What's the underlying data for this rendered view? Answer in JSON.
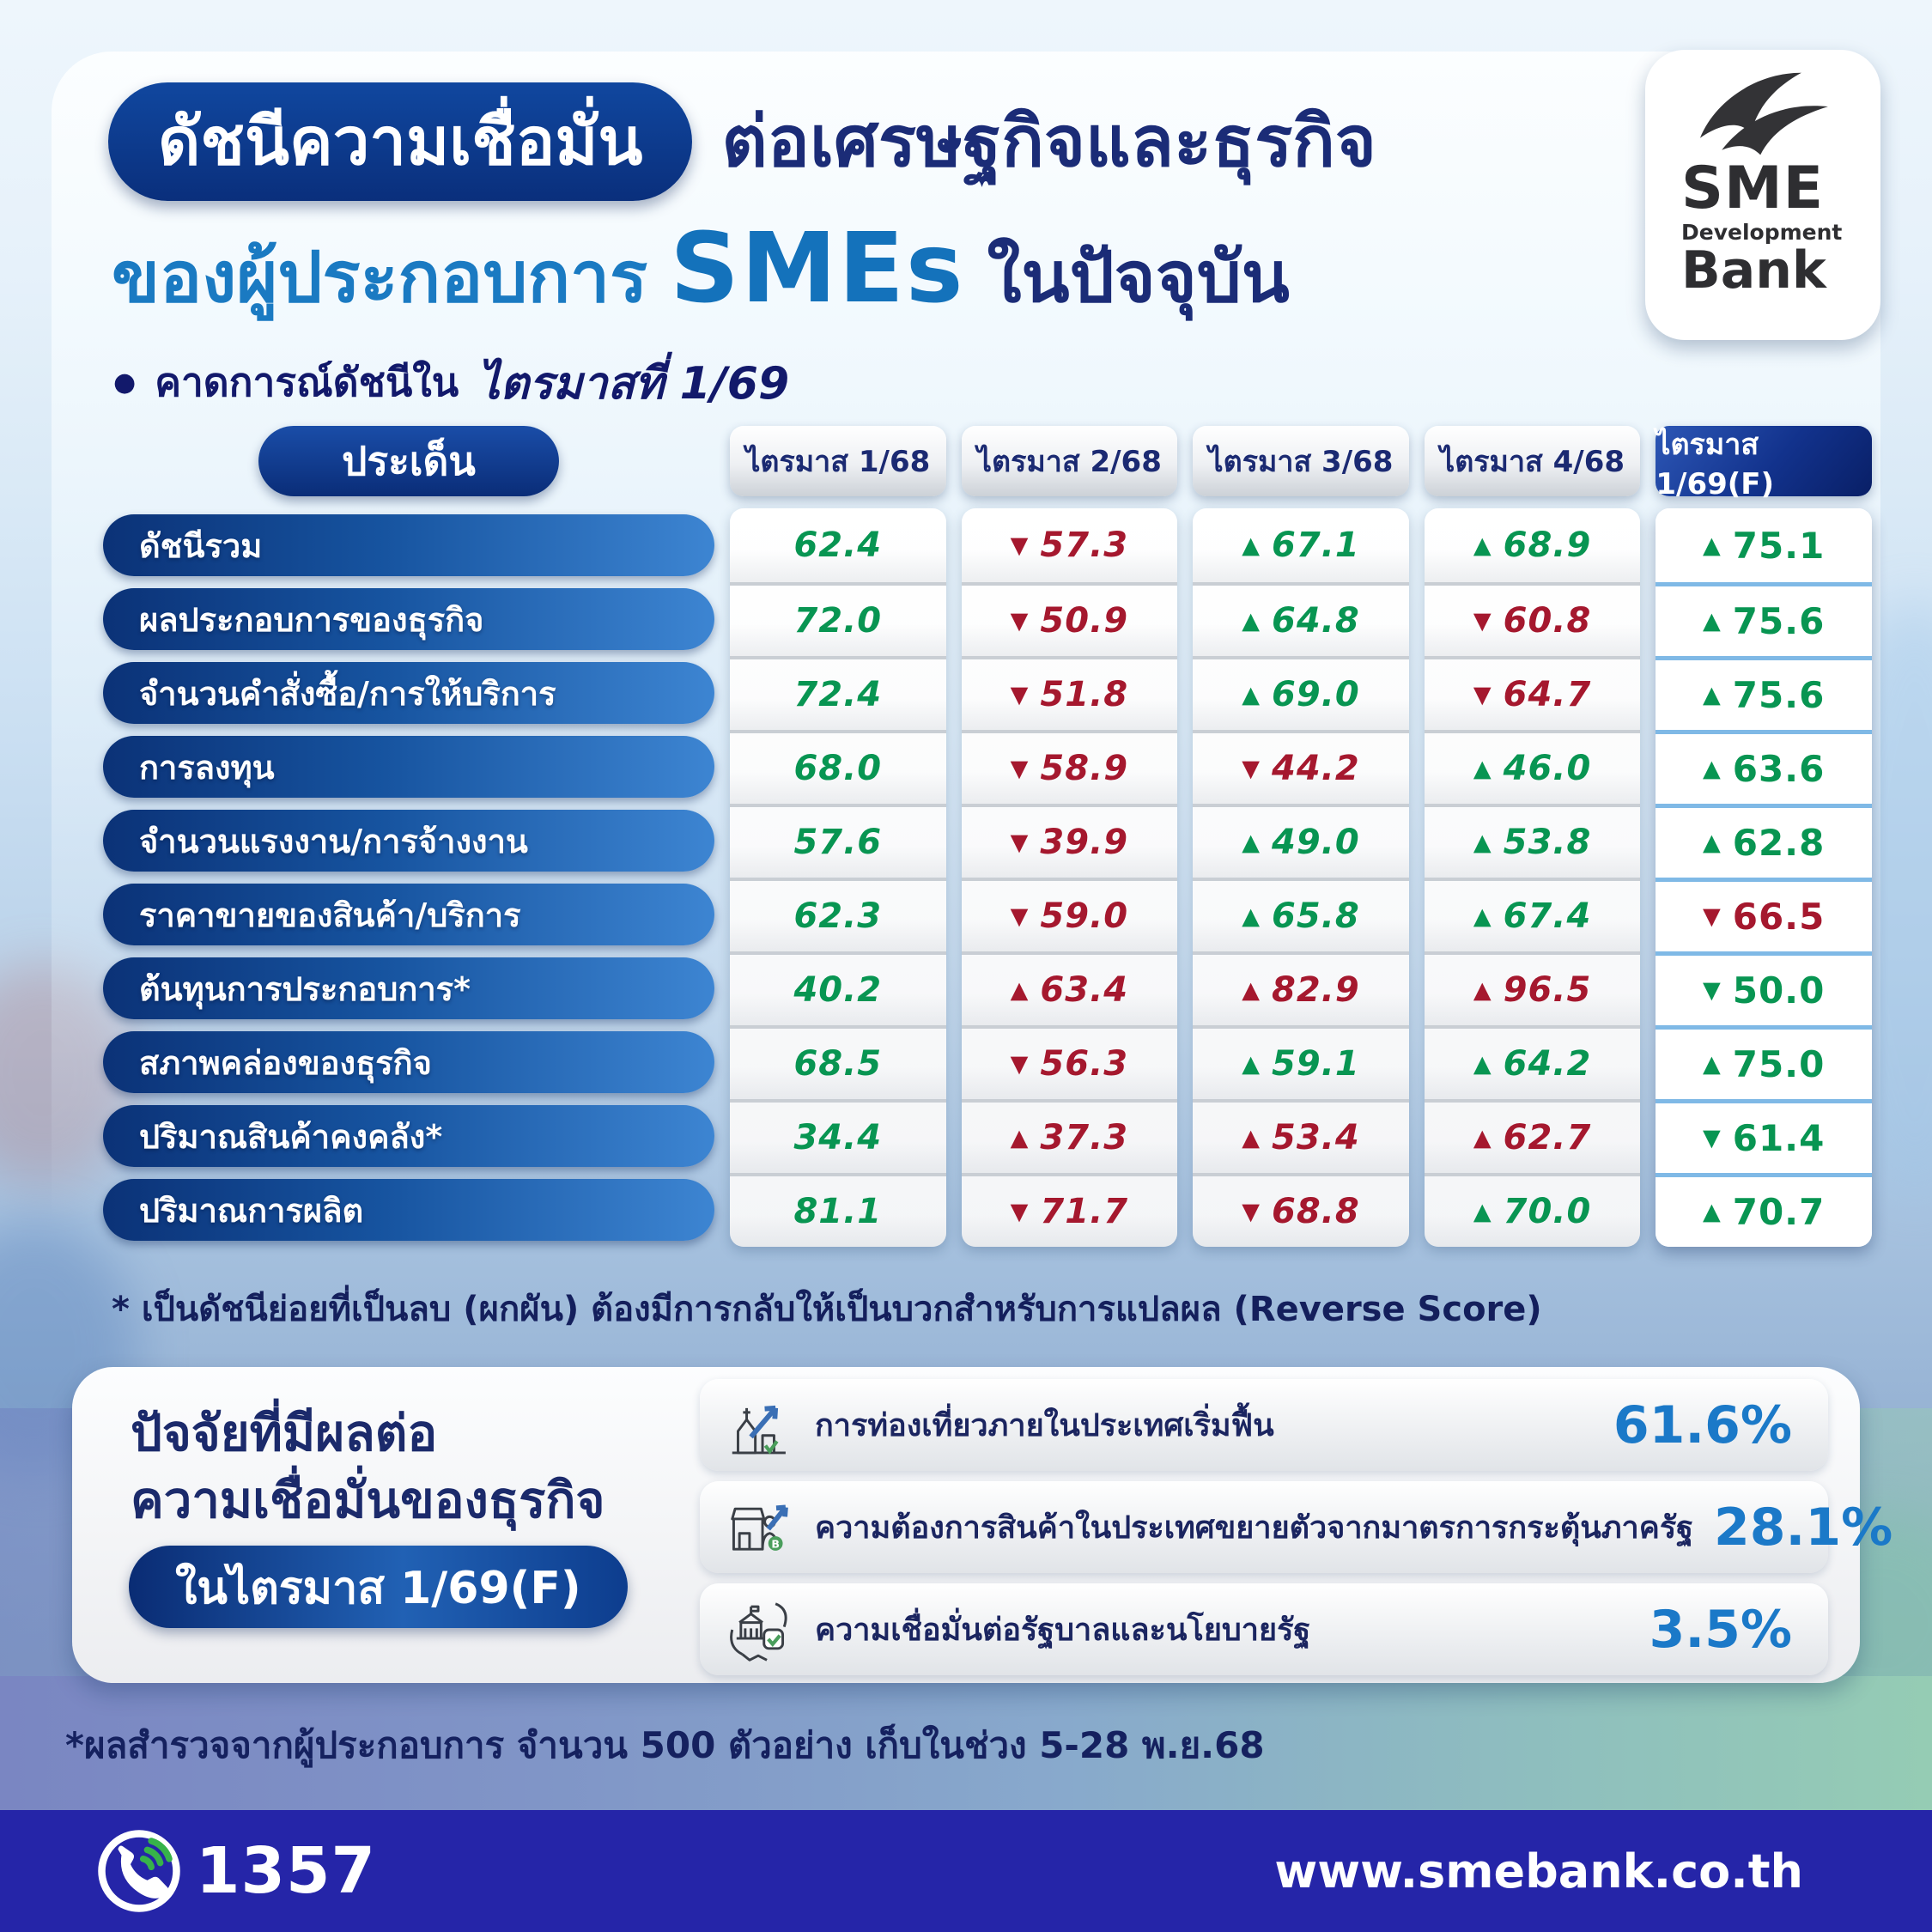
{
  "header": {
    "title_badge": "ดัชนีความเชื่อมั่น",
    "title_rest": "ต่อเศรษฐกิจและธุรกิจ",
    "title_line2_a": "ของผู้ประกอบการ",
    "title_line2_b": "SMEs",
    "title_line2_c": "ในปัจจุบัน",
    "subtitle_prefix": "คาดการณ์ดัชนีใน",
    "subtitle_bold": "ไตรมาสที่ 1/69"
  },
  "logo": {
    "sme": "SME",
    "development": "Development",
    "bank": "Bank"
  },
  "glyphs": {
    "up": "▲",
    "down": "▼",
    "bullet": "●"
  },
  "colors": {
    "green": "#089552",
    "red": "#a5182e",
    "accent_blue": "#1b79c8",
    "navy": "#1b2a72",
    "footer_bar": "#2525a8"
  },
  "table": {
    "corner_label": "ประเด็น",
    "columns": [
      "ไตรมาส 1/68",
      "ไตรมาส 2/68",
      "ไตรมาส 3/68",
      "ไตรมาส 4/68",
      "ไตรมาส 1/69(F)"
    ],
    "rows": [
      {
        "label": "ดัชนีรวม",
        "cells": [
          {
            "v": "62.4",
            "d": "",
            "c": "g"
          },
          {
            "v": "57.3",
            "d": "down",
            "c": "r"
          },
          {
            "v": "67.1",
            "d": "up",
            "c": "g"
          },
          {
            "v": "68.9",
            "d": "up",
            "c": "g"
          },
          {
            "v": "75.1",
            "d": "up",
            "c": "g"
          }
        ]
      },
      {
        "label": "ผลประกอบการของธุรกิจ",
        "cells": [
          {
            "v": "72.0",
            "d": "",
            "c": "g"
          },
          {
            "v": "50.9",
            "d": "down",
            "c": "r"
          },
          {
            "v": "64.8",
            "d": "up",
            "c": "g"
          },
          {
            "v": "60.8",
            "d": "down",
            "c": "r"
          },
          {
            "v": "75.6",
            "d": "up",
            "c": "g"
          }
        ]
      },
      {
        "label": "จำนวนคำสั่งซื้อ/การให้บริการ",
        "cells": [
          {
            "v": "72.4",
            "d": "",
            "c": "g"
          },
          {
            "v": "51.8",
            "d": "down",
            "c": "r"
          },
          {
            "v": "69.0",
            "d": "up",
            "c": "g"
          },
          {
            "v": "64.7",
            "d": "down",
            "c": "r"
          },
          {
            "v": "75.6",
            "d": "up",
            "c": "g"
          }
        ]
      },
      {
        "label": "การลงทุน",
        "cells": [
          {
            "v": "68.0",
            "d": "",
            "c": "g"
          },
          {
            "v": "58.9",
            "d": "down",
            "c": "r"
          },
          {
            "v": "44.2",
            "d": "down",
            "c": "r"
          },
          {
            "v": "46.0",
            "d": "up",
            "c": "g"
          },
          {
            "v": "63.6",
            "d": "up",
            "c": "g"
          }
        ]
      },
      {
        "label": "จำนวนแรงงาน/การจ้างงาน",
        "cells": [
          {
            "v": "57.6",
            "d": "",
            "c": "g"
          },
          {
            "v": "39.9",
            "d": "down",
            "c": "r"
          },
          {
            "v": "49.0",
            "d": "up",
            "c": "g"
          },
          {
            "v": "53.8",
            "d": "up",
            "c": "g"
          },
          {
            "v": "62.8",
            "d": "up",
            "c": "g"
          }
        ]
      },
      {
        "label": "ราคาขายของสินค้า/บริการ",
        "cells": [
          {
            "v": "62.3",
            "d": "",
            "c": "g"
          },
          {
            "v": "59.0",
            "d": "down",
            "c": "r"
          },
          {
            "v": "65.8",
            "d": "up",
            "c": "g"
          },
          {
            "v": "67.4",
            "d": "up",
            "c": "g"
          },
          {
            "v": "66.5",
            "d": "down",
            "c": "r"
          }
        ]
      },
      {
        "label": "ต้นทุนการประกอบการ*",
        "cells": [
          {
            "v": "40.2",
            "d": "",
            "c": "g"
          },
          {
            "v": "63.4",
            "d": "up",
            "c": "r"
          },
          {
            "v": "82.9",
            "d": "up",
            "c": "r"
          },
          {
            "v": "96.5",
            "d": "up",
            "c": "r"
          },
          {
            "v": "50.0",
            "d": "down",
            "c": "g"
          }
        ]
      },
      {
        "label": "สภาพคล่องของธุรกิจ",
        "cells": [
          {
            "v": "68.5",
            "d": "",
            "c": "g"
          },
          {
            "v": "56.3",
            "d": "down",
            "c": "r"
          },
          {
            "v": "59.1",
            "d": "up",
            "c": "g"
          },
          {
            "v": "64.2",
            "d": "up",
            "c": "g"
          },
          {
            "v": "75.0",
            "d": "up",
            "c": "g"
          }
        ]
      },
      {
        "label": "ปริมาณสินค้าคงคลัง*",
        "cells": [
          {
            "v": "34.4",
            "d": "",
            "c": "g"
          },
          {
            "v": "37.3",
            "d": "up",
            "c": "r"
          },
          {
            "v": "53.4",
            "d": "up",
            "c": "r"
          },
          {
            "v": "62.7",
            "d": "up",
            "c": "r"
          },
          {
            "v": "61.4",
            "d": "down",
            "c": "g"
          }
        ]
      },
      {
        "label": "ปริมาณการผลิต",
        "cells": [
          {
            "v": "81.1",
            "d": "",
            "c": "g"
          },
          {
            "v": "71.7",
            "d": "down",
            "c": "r"
          },
          {
            "v": "68.8",
            "d": "down",
            "c": "r"
          },
          {
            "v": "70.0",
            "d": "up",
            "c": "g"
          },
          {
            "v": "70.7",
            "d": "up",
            "c": "g"
          }
        ]
      }
    ]
  },
  "footnote": "* เป็นดัชนีย่อยที่เป็นลบ (ผกผัน) ต้องมีการกลับให้เป็นบวกสำหรับการแปลผล (Reverse Score)",
  "factors": {
    "heading_line1": "ปัจจัยที่มีผลต่อ",
    "heading_line2": "ความเชื่อมั่นของธุรกิจ",
    "period_badge": "ในไตรมาส 1/69(F)",
    "items": [
      {
        "icon": "tourism-icon",
        "label": "การท่องเที่ยวภายในประเทศเริ่มฟื้น",
        "value": "61.6%"
      },
      {
        "icon": "domestic-demand-icon",
        "label": "ความต้องการสินค้าในประเทศขยายตัวจากมาตรการกระตุ้นภาครัฐ",
        "value": "28.1%"
      },
      {
        "icon": "government-confidence-icon",
        "label": "ความเชื่อมั่นต่อรัฐบาลและนโยบายรัฐ",
        "value": "3.5%"
      }
    ]
  },
  "survey_note": "*ผลสำรวจจากผู้ประกอบการ จำนวน 500 ตัวอย่าง เก็บในช่วง 5-28 พ.ย.68",
  "footer": {
    "phone": "1357",
    "website": "www.smebank.co.th"
  },
  "chart_data": [
    {
      "type": "table",
      "title": "ดัชนีความเชื่อมั่นต่อเศรษฐกิจและธุรกิจของผู้ประกอบการ SMEs ในปัจจุบัน",
      "subtitle": "คาดการณ์ดัชนีในไตรมาสที่ 1/69",
      "categories": [
        "ไตรมาส 1/68",
        "ไตรมาส 2/68",
        "ไตรมาส 3/68",
        "ไตรมาส 4/68",
        "ไตรมาส 1/69(F)"
      ],
      "series": [
        {
          "name": "ดัชนีรวม",
          "values": [
            62.4,
            57.3,
            67.1,
            68.9,
            75.1
          ]
        },
        {
          "name": "ผลประกอบการของธุรกิจ",
          "values": [
            72.0,
            50.9,
            64.8,
            60.8,
            75.6
          ]
        },
        {
          "name": "จำนวนคำสั่งซื้อ/การให้บริการ",
          "values": [
            72.4,
            51.8,
            69.0,
            64.7,
            75.6
          ]
        },
        {
          "name": "การลงทุน",
          "values": [
            68.0,
            58.9,
            44.2,
            46.0,
            63.6
          ]
        },
        {
          "name": "จำนวนแรงงาน/การจ้างงาน",
          "values": [
            57.6,
            39.9,
            49.0,
            53.8,
            62.8
          ]
        },
        {
          "name": "ราคาขายของสินค้า/บริการ",
          "values": [
            62.3,
            59.0,
            65.8,
            67.4,
            66.5
          ]
        },
        {
          "name": "ต้นทุนการประกอบการ*",
          "values": [
            40.2,
            63.4,
            82.9,
            96.5,
            50.0
          ]
        },
        {
          "name": "สภาพคล่องของธุรกิจ",
          "values": [
            68.5,
            56.3,
            59.1,
            64.2,
            75.0
          ]
        },
        {
          "name": "ปริมาณสินค้าคงคลัง*",
          "values": [
            34.4,
            37.3,
            53.4,
            62.7,
            61.4
          ]
        },
        {
          "name": "ปริมาณการผลิต",
          "values": [
            81.1,
            71.7,
            68.8,
            70.0,
            70.7
          ]
        }
      ]
    },
    {
      "type": "bar",
      "title": "ปัจจัยที่มีผลต่อความเชื่อมั่นของธุรกิจ ในไตรมาส 1/69(F)",
      "categories": [
        "การท่องเที่ยวภายในประเทศเริ่มฟื้น",
        "ความต้องการสินค้าในประเทศขยายตัวจากมาตรการกระตุ้นภาครัฐ",
        "ความเชื่อมั่นต่อรัฐบาลและนโยบายรัฐ"
      ],
      "values": [
        61.6,
        28.1,
        3.5
      ],
      "xlabel": "",
      "ylabel": "ร้อยละ",
      "ylim": [
        0,
        100
      ]
    }
  ]
}
